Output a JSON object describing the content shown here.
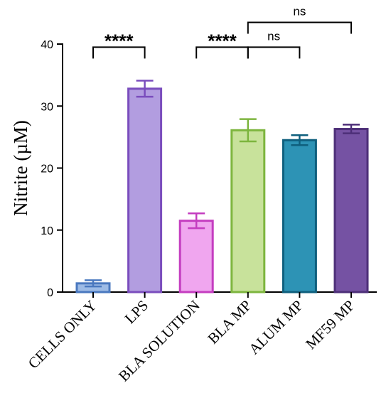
{
  "chart_data": {
    "type": "bar",
    "title": "",
    "xlabel": "",
    "ylabel": "Nitrite (µM)",
    "ylim": [
      0,
      40
    ],
    "yticks": [
      0,
      10,
      20,
      30,
      40
    ],
    "grid": false,
    "categories": [
      "CELLS ONLY",
      "LPS",
      "BLA SOLUTION",
      "BLA MP",
      "ALUM MP",
      "MF59 MP"
    ],
    "values": [
      1.4,
      32.8,
      11.5,
      26.1,
      24.5,
      26.3
    ],
    "errors": [
      0.5,
      1.3,
      1.2,
      1.8,
      0.8,
      0.7
    ],
    "colors": [
      {
        "fill": "#9dbbe6",
        "stroke": "#4a78bf"
      },
      {
        "fill": "#b29de0",
        "stroke": "#7a4dbd"
      },
      {
        "fill": "#f0a6ef",
        "stroke": "#c43dc0"
      },
      {
        "fill": "#c8e29b",
        "stroke": "#7db53e"
      },
      {
        "fill": "#2d93b5",
        "stroke": "#0f5f7d"
      },
      {
        "fill": "#7552a3",
        "stroke": "#4d2f78"
      }
    ],
    "significance": [
      {
        "from": 0,
        "to": 1,
        "label": "****",
        "level": 39.5,
        "style": "stars"
      },
      {
        "from": 2,
        "to": 3,
        "label": "****",
        "level": 39.5,
        "style": "stars"
      },
      {
        "from": 3,
        "to": 4,
        "label": "ns",
        "level": 39.5,
        "style": "ns"
      },
      {
        "from": 3,
        "to": 5,
        "label": "ns",
        "level": 43.5,
        "style": "ns"
      }
    ]
  }
}
